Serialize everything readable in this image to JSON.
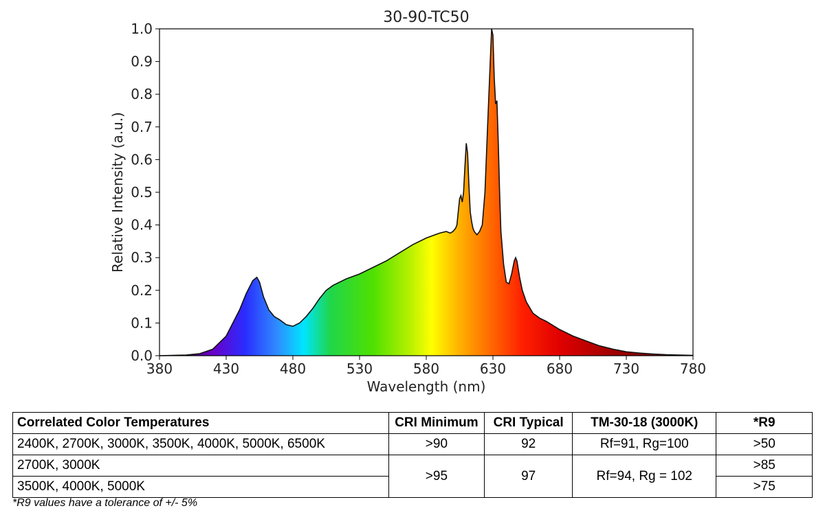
{
  "chart_data": {
    "type": "area",
    "title": "30-90-TC50",
    "xlabel": "Wavelength (nm)",
    "ylabel": "Relative Intensity (a.u.)",
    "xlim": [
      380,
      780
    ],
    "ylim": [
      0,
      1.0
    ],
    "xticks": [
      "380",
      "430",
      "480",
      "530",
      "580",
      "630",
      "680",
      "730",
      "780"
    ],
    "yticks": [
      "0.0",
      "0.1",
      "0.2",
      "0.3",
      "0.4",
      "0.5",
      "0.6",
      "0.7",
      "0.8",
      "0.9",
      "1.0"
    ],
    "grid": false,
    "fill": "visible-spectrum-gradient",
    "x": [
      380,
      400,
      410,
      420,
      430,
      440,
      445,
      450,
      453,
      455,
      458,
      462,
      466,
      470,
      475,
      480,
      485,
      490,
      495,
      500,
      505,
      510,
      520,
      530,
      540,
      550,
      560,
      570,
      580,
      590,
      595,
      598,
      600,
      602,
      603,
      605,
      606,
      607,
      608,
      609,
      610,
      611,
      612,
      613,
      614,
      615,
      616,
      618,
      620,
      622,
      624,
      626,
      628,
      629,
      630,
      631,
      632,
      633,
      634,
      635,
      636,
      638,
      640,
      642,
      644,
      646,
      647,
      648,
      650,
      652,
      655,
      660,
      665,
      670,
      680,
      690,
      700,
      710,
      720,
      730,
      740,
      750,
      760,
      780
    ],
    "y": [
      0.0,
      0.002,
      0.006,
      0.02,
      0.06,
      0.14,
      0.19,
      0.23,
      0.24,
      0.225,
      0.18,
      0.14,
      0.12,
      0.11,
      0.095,
      0.09,
      0.1,
      0.12,
      0.145,
      0.175,
      0.2,
      0.215,
      0.235,
      0.25,
      0.27,
      0.29,
      0.315,
      0.34,
      0.36,
      0.375,
      0.38,
      0.375,
      0.38,
      0.39,
      0.4,
      0.48,
      0.49,
      0.47,
      0.5,
      0.58,
      0.65,
      0.62,
      0.52,
      0.44,
      0.41,
      0.39,
      0.38,
      0.37,
      0.38,
      0.4,
      0.5,
      0.7,
      0.9,
      1.0,
      0.98,
      0.85,
      0.77,
      0.78,
      0.65,
      0.5,
      0.38,
      0.28,
      0.225,
      0.22,
      0.25,
      0.29,
      0.3,
      0.29,
      0.24,
      0.2,
      0.165,
      0.13,
      0.115,
      0.105,
      0.08,
      0.06,
      0.045,
      0.03,
      0.02,
      0.012,
      0.008,
      0.005,
      0.003,
      0.001
    ]
  },
  "table": {
    "headers": [
      "Correlated Color Temperatures",
      "CRI Minimum",
      "CRI Typical",
      "TM-30-18 (3000K)",
      "*R9"
    ],
    "row1": {
      "cct": "2400K, 2700K, 3000K, 3500K, 4000K, 5000K, 6500K",
      "cri_min": ">90",
      "cri_typ": "92",
      "tm30": "Rf=91, Rg=100",
      "r9": ">50"
    },
    "row2": {
      "cct": "2700K, 3000K",
      "cri_min": ">95",
      "cri_typ": "97",
      "tm30": "Rf=94, Rg = 102",
      "r9": ">85"
    },
    "row3": {
      "cct": "3500K, 4000K, 5000K",
      "r9": ">75"
    }
  },
  "footnote": "*R9 values have a tolerance of +/- 5%"
}
